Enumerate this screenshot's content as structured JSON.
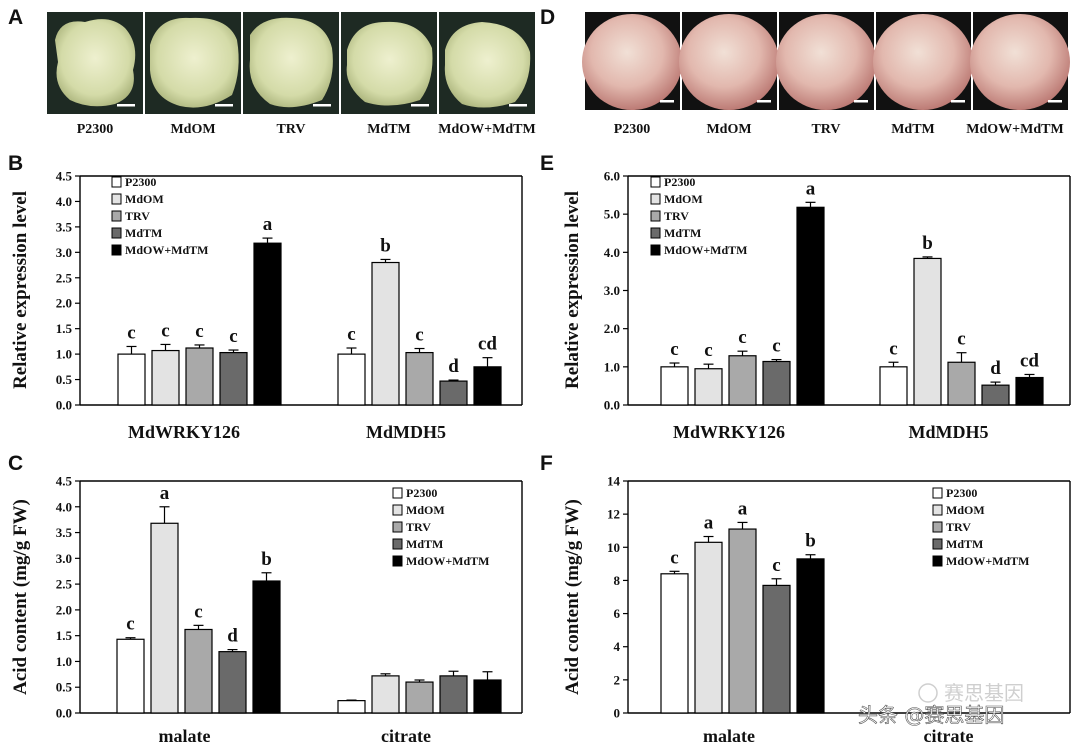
{
  "panels_photo": [
    {
      "id": "A",
      "labels": [
        "P2300",
        "MdOM",
        "TRV",
        "MdTM",
        "MdOW+MdTM"
      ],
      "subject": "callus"
    },
    {
      "id": "D",
      "labels": [
        "P2300",
        "MdOM",
        "TRV",
        "MdTM",
        "MdOW+MdTM"
      ],
      "subject": "apple"
    }
  ],
  "legend_items": [
    "P2300",
    "MdOM",
    "TRV",
    "MdTM",
    "MdOW+MdTM"
  ],
  "colors": {
    "P2300": "#ffffff",
    "MdOM": "#e3e3e3",
    "TRV": "#a9a9a9",
    "MdTM": "#6a6a6a",
    "MdOW+MdTM": "#000000",
    "callus": "#d7ddb0",
    "apple": "#e2b8ae"
  },
  "watermark": {
    "icon_text": "赛思基因",
    "text": "头条 @赛思基因"
  },
  "chart_data": [
    {
      "id": "B",
      "type": "bar",
      "ylabel": "Relative expression level",
      "ylim": [
        0,
        4.5
      ],
      "yticks": [
        "0.0",
        "0.5",
        "1.0",
        "1.5",
        "2.0",
        "2.5",
        "3.0",
        "3.5",
        "4.0",
        "4.5"
      ],
      "categories": [
        "MdWRKY126",
        "MdMDH5"
      ],
      "series": [
        {
          "name": "P2300",
          "values": [
            1.0,
            1.0
          ],
          "errors": [
            0.15,
            0.12
          ],
          "letters": [
            "c",
            "c"
          ]
        },
        {
          "name": "MdOM",
          "values": [
            1.07,
            2.8
          ],
          "errors": [
            0.12,
            0.06
          ],
          "letters": [
            "c",
            "b"
          ]
        },
        {
          "name": "TRV",
          "values": [
            1.12,
            1.03
          ],
          "errors": [
            0.06,
            0.08
          ],
          "letters": [
            "c",
            "c"
          ]
        },
        {
          "name": "MdTM",
          "values": [
            1.03,
            0.47
          ],
          "errors": [
            0.05,
            0.02
          ],
          "letters": [
            "c",
            "d"
          ]
        },
        {
          "name": "MdOW+MdTM",
          "values": [
            3.18,
            0.75
          ],
          "errors": [
            0.1,
            0.18
          ],
          "letters": [
            "a",
            "cd"
          ]
        }
      ]
    },
    {
      "id": "C",
      "type": "bar",
      "ylabel": "Acid content (mg/g FW)",
      "ylim": [
        0,
        4.5
      ],
      "yticks": [
        "0.0",
        "0.5",
        "1.0",
        "1.5",
        "2.0",
        "2.5",
        "3.0",
        "3.5",
        "4.0",
        "4.5"
      ],
      "categories": [
        "malate",
        "citrate"
      ],
      "series": [
        {
          "name": "P2300",
          "values": [
            1.43,
            0.24
          ],
          "errors": [
            0.03,
            0.01
          ],
          "letters": [
            "c",
            ""
          ]
        },
        {
          "name": "MdOM",
          "values": [
            3.68,
            0.72
          ],
          "errors": [
            0.32,
            0.04
          ],
          "letters": [
            "a",
            ""
          ]
        },
        {
          "name": "TRV",
          "values": [
            1.62,
            0.6
          ],
          "errors": [
            0.08,
            0.04
          ],
          "letters": [
            "c",
            ""
          ]
        },
        {
          "name": "MdTM",
          "values": [
            1.19,
            0.72
          ],
          "errors": [
            0.04,
            0.09
          ],
          "letters": [
            "d",
            ""
          ]
        },
        {
          "name": "MdOW+MdTM",
          "values": [
            2.56,
            0.64
          ],
          "errors": [
            0.16,
            0.16
          ],
          "letters": [
            "b",
            ""
          ]
        }
      ]
    },
    {
      "id": "E",
      "type": "bar",
      "ylabel": "Relative expression level",
      "ylim": [
        0,
        6
      ],
      "yticks": [
        "0.0",
        "1.0",
        "2.0",
        "3.0",
        "4.0",
        "5.0",
        "6.0"
      ],
      "categories": [
        "MdWRKY126",
        "MdMDH5"
      ],
      "series": [
        {
          "name": "P2300",
          "values": [
            1.0,
            1.0
          ],
          "errors": [
            0.1,
            0.12
          ],
          "letters": [
            "c",
            "c"
          ]
        },
        {
          "name": "MdOM",
          "values": [
            0.95,
            3.84
          ],
          "errors": [
            0.12,
            0.04
          ],
          "letters": [
            "c",
            "b"
          ]
        },
        {
          "name": "TRV",
          "values": [
            1.29,
            1.12
          ],
          "errors": [
            0.12,
            0.25
          ],
          "letters": [
            "c",
            "c"
          ]
        },
        {
          "name": "MdTM",
          "values": [
            1.14,
            0.52
          ],
          "errors": [
            0.05,
            0.08
          ],
          "letters": [
            "c",
            "d"
          ]
        },
        {
          "name": "MdOW+MdTM",
          "values": [
            5.18,
            0.72
          ],
          "errors": [
            0.13,
            0.08
          ],
          "letters": [
            "a",
            "cd"
          ]
        }
      ]
    },
    {
      "id": "F",
      "type": "bar",
      "ylabel": "Acid content (mg/g FW)",
      "ylim": [
        0,
        14
      ],
      "yticks": [
        "0",
        "2",
        "4",
        "6",
        "8",
        "10",
        "12",
        "14"
      ],
      "categories": [
        "malate",
        "citrate"
      ],
      "series": [
        {
          "name": "P2300",
          "values": [
            8.4,
            null
          ],
          "errors": [
            0.15,
            null
          ],
          "letters": [
            "c",
            ""
          ]
        },
        {
          "name": "MdOM",
          "values": [
            10.3,
            null
          ],
          "errors": [
            0.35,
            null
          ],
          "letters": [
            "a",
            ""
          ]
        },
        {
          "name": "TRV",
          "values": [
            11.1,
            null
          ],
          "errors": [
            0.4,
            null
          ],
          "letters": [
            "a",
            ""
          ]
        },
        {
          "name": "MdTM",
          "values": [
            7.7,
            null
          ],
          "errors": [
            0.4,
            null
          ],
          "letters": [
            "c",
            ""
          ]
        },
        {
          "name": "MdOW+MdTM",
          "values": [
            9.3,
            null
          ],
          "errors": [
            0.25,
            null
          ],
          "letters": [
            "b",
            ""
          ]
        }
      ]
    }
  ]
}
